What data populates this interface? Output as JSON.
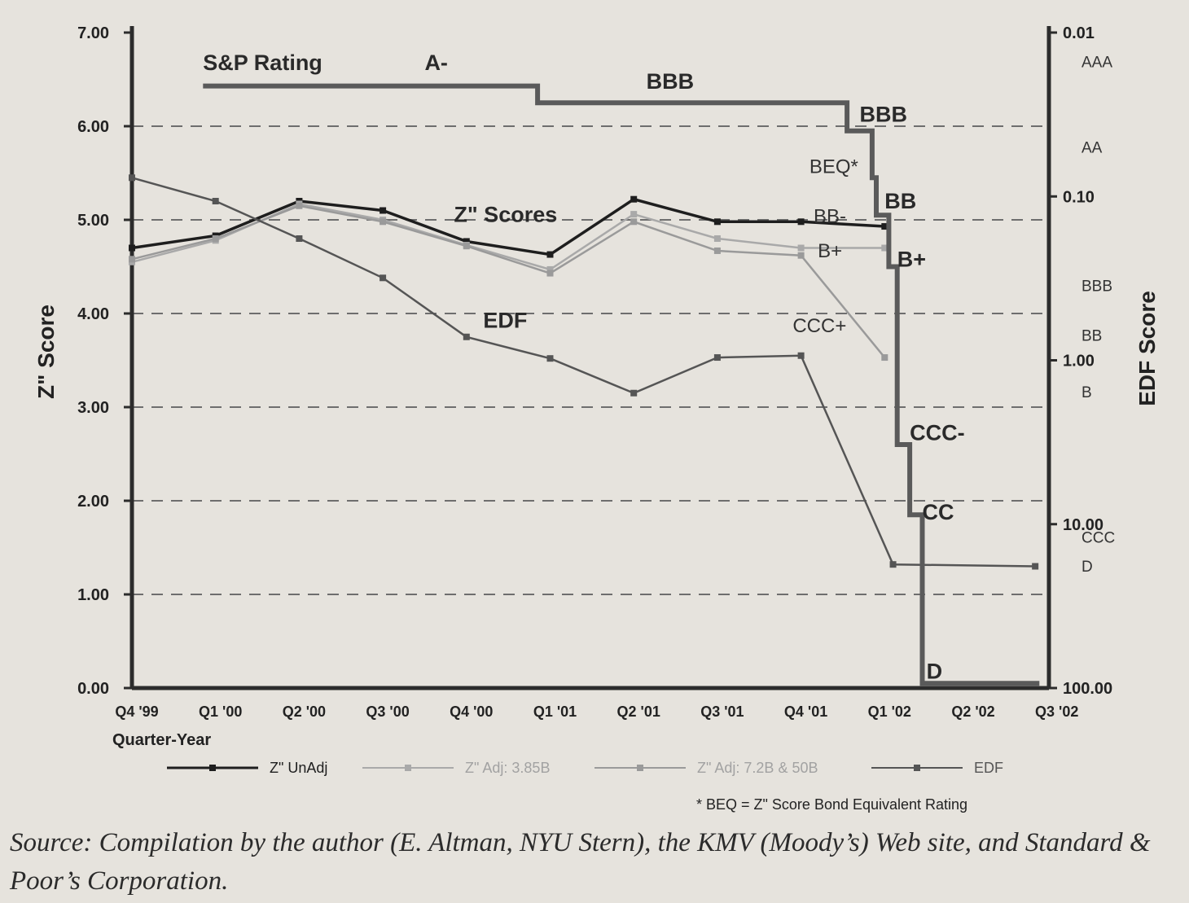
{
  "chart_data": {
    "type": "line",
    "title": "",
    "xlabel": "Quarter-Year",
    "ylabel": "Z\" Score",
    "y2label": "EDF Score",
    "x": [
      "Q4 '99",
      "Q1 '00",
      "Q2 '00",
      "Q3 '00",
      "Q4 '00",
      "Q1 '01",
      "Q2 '01",
      "Q3 '01",
      "Q4 '01",
      "Q1 '02",
      "Q2 '02",
      "Q3 '02"
    ],
    "ylim": [
      0,
      7
    ],
    "yticks": [
      "0.00",
      "1.00",
      "2.00",
      "3.00",
      "4.00",
      "5.00",
      "6.00",
      "7.00"
    ],
    "y2scale": "log",
    "y2lim": [
      0.01,
      100
    ],
    "y2ticks": [
      "0.01",
      "0.10",
      "1.00",
      "10.00",
      "100.00"
    ],
    "bond_equivalent_ratings": [
      {
        "label": "AAA",
        "edf": 0.015
      },
      {
        "label": "AA",
        "edf": 0.05
      },
      {
        "label": "BBB",
        "edf": 0.35
      },
      {
        "label": "BB",
        "edf": 0.7
      },
      {
        "label": "B",
        "edf": 1.55
      },
      {
        "label": "CCC",
        "edf": 12
      },
      {
        "label": "D",
        "edf": 18
      }
    ],
    "grid": true,
    "legend_position": "bottom",
    "series": [
      {
        "name": "Z\" UnAdj",
        "color": "#1e1e1e",
        "points": [
          [
            0,
            4.7
          ],
          [
            1,
            4.83
          ],
          [
            2,
            5.2
          ],
          [
            3,
            5.1
          ],
          [
            4,
            4.77
          ],
          [
            5,
            4.63
          ],
          [
            6,
            5.22
          ],
          [
            7,
            4.98
          ],
          [
            8,
            4.98
          ],
          [
            9,
            4.93
          ]
        ]
      },
      {
        "name": "Z\" Adj: 3.85B",
        "color": "#a9a9a9",
        "points": [
          [
            0,
            4.55
          ],
          [
            1,
            4.78
          ],
          [
            2,
            5.17
          ],
          [
            3,
            5.0
          ],
          [
            4,
            4.73
          ],
          [
            5,
            4.47
          ],
          [
            6,
            5.06
          ],
          [
            7,
            4.8
          ],
          [
            8,
            4.7
          ],
          [
            9,
            4.7
          ]
        ]
      },
      {
        "name": "Z\" Adj: 7.2B & 50B",
        "color": "#9a9a9a",
        "points": [
          [
            0,
            4.58
          ],
          [
            1,
            4.8
          ],
          [
            2,
            5.15
          ],
          [
            3,
            4.98
          ],
          [
            4,
            4.72
          ],
          [
            5,
            4.43
          ],
          [
            6,
            4.98
          ],
          [
            7,
            4.67
          ],
          [
            8,
            4.62
          ],
          [
            9,
            3.53
          ]
        ]
      },
      {
        "name": "EDF",
        "color": "#555555",
        "points": [
          [
            0,
            5.45
          ],
          [
            1,
            5.2
          ],
          [
            2,
            4.8
          ],
          [
            3,
            4.38
          ],
          [
            4,
            3.75
          ],
          [
            5,
            3.52
          ],
          [
            6,
            3.15
          ],
          [
            7,
            3.53
          ],
          [
            8,
            3.55
          ],
          [
            9.1,
            1.32
          ],
          [
            10.8,
            1.3
          ]
        ]
      }
    ],
    "sp_rating": {
      "name": "S&P Rating",
      "color": "#5a5a5a",
      "steps": [
        [
          0.85,
          6.43
        ],
        [
          4.85,
          6.43
        ],
        [
          4.85,
          6.25
        ],
        [
          8.55,
          6.25
        ],
        [
          8.55,
          5.95
        ],
        [
          8.85,
          5.95
        ],
        [
          8.85,
          5.45
        ],
        [
          8.9,
          5.45
        ],
        [
          8.9,
          5.05
        ],
        [
          9.05,
          5.05
        ],
        [
          9.05,
          4.5
        ],
        [
          9.15,
          4.5
        ],
        [
          9.15,
          2.6
        ],
        [
          9.3,
          2.6
        ],
        [
          9.3,
          1.85
        ],
        [
          9.45,
          1.85
        ],
        [
          9.45,
          0.05
        ],
        [
          10.85,
          0.05
        ]
      ],
      "labels": [
        {
          "text": "A-",
          "x": 3.5,
          "y": 6.6,
          "style": "bold"
        },
        {
          "text": "BBB",
          "x": 6.15,
          "y": 6.4,
          "style": "bold"
        },
        {
          "text": "BBB",
          "x": 8.7,
          "y": 6.05,
          "style": "bold"
        },
        {
          "text": "BB",
          "x": 9.0,
          "y": 5.12,
          "style": "bold"
        },
        {
          "text": "B+",
          "x": 9.15,
          "y": 4.5,
          "style": "bold"
        },
        {
          "text": "CCC-",
          "x": 9.3,
          "y": 2.65,
          "style": "bold"
        },
        {
          "text": "CC",
          "x": 9.45,
          "y": 1.8,
          "style": "bold"
        },
        {
          "text": "D",
          "x": 9.5,
          "y": 0.1,
          "style": "bold"
        }
      ]
    },
    "beq_labels": [
      {
        "text": "BEQ*",
        "x": 8.1,
        "y": 5.5
      },
      {
        "text": "BB-",
        "x": 8.15,
        "y": 4.97
      },
      {
        "text": "B+",
        "x": 8.2,
        "y": 4.6
      },
      {
        "text": "CCC+",
        "x": 7.9,
        "y": 3.8
      }
    ],
    "annotations": [
      {
        "text": "S&P Rating",
        "x": 0.85,
        "y": 6.6
      },
      {
        "text": "Z\" Scores",
        "x": 3.85,
        "y": 4.98
      },
      {
        "text": "EDF",
        "x": 4.2,
        "y": 3.85
      }
    ],
    "footnote": "* BEQ = Z\" Score Bond Equivalent Rating"
  },
  "source": "Source: Compilation by the author (E. Altman, NYU Stern), the KMV (Moody’s) Web site, and Standard & Poor’s Corporation."
}
